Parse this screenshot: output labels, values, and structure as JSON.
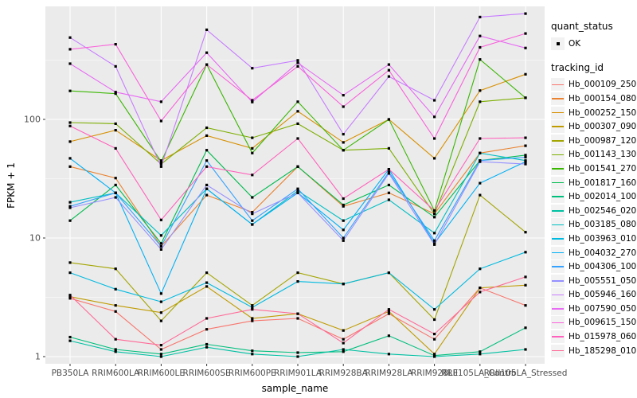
{
  "figure": {
    "background": "#ffffff",
    "panel_background": "#ebebeb",
    "grid_color": "#ffffff",
    "axis_text_color": "#4d4d4d",
    "axis_title_color": "#000000",
    "marker_color": "#000000",
    "legend_key_background": "#f2f2f2"
  },
  "legend": {
    "quant_title": "quant_status",
    "quant_items": [
      {
        "label": "OK",
        "marker": "point"
      }
    ],
    "tracking_title": "tracking_id"
  },
  "chart_data": {
    "type": "line",
    "title": "",
    "xlabel": "sample_name",
    "ylabel": "FPKM + 1",
    "y_scale": "log10",
    "y_ticks": [
      1,
      10,
      100
    ],
    "y_tick_labels": [
      "1",
      "10",
      "100"
    ],
    "y_minor_ticks": [
      3.162,
      31.62,
      316.2
    ],
    "ylim": [
      0.93,
      870
    ],
    "grid": true,
    "legend_position": "right",
    "marker": "black-square",
    "categories": [
      "PB350LA",
      "RRIM600LA",
      "RRIM600LE",
      "RRIM600SE",
      "RRIM600PE",
      "RRIM901LA",
      "RRIM928BA",
      "RRIM928LA",
      "RRIM928LE",
      "RRII105LA_Control",
      "RRII105LA_Stressed"
    ],
    "series": [
      {
        "name": "Hb_000109_250",
        "color": "#F8766D",
        "values": [
          3.1,
          2.4,
          1.15,
          1.7,
          2.0,
          2.1,
          1.4,
          2.3,
          1.4,
          3.8,
          2.7
        ]
      },
      {
        "name": "Hb_000154_080",
        "color": "#EA8331",
        "values": [
          40,
          32,
          8.5,
          23,
          16.5,
          40,
          18.5,
          24,
          16,
          52,
          60
        ]
      },
      {
        "name": "Hb_000252_150",
        "color": "#D89000",
        "values": [
          65,
          81,
          45,
          73,
          57,
          117,
          64,
          100,
          47,
          175,
          240
        ]
      },
      {
        "name": "Hb_000307_090",
        "color": "#C09B00",
        "values": [
          3.2,
          2.7,
          2.35,
          3.9,
          2.1,
          2.3,
          1.66,
          2.4,
          1.05,
          3.8,
          4.0
        ]
      },
      {
        "name": "Hb_000987_120",
        "color": "#A3A500",
        "values": [
          6.2,
          5.5,
          2.0,
          5.1,
          2.7,
          5.1,
          4.1,
          5.1,
          2.05,
          23,
          11.2
        ]
      },
      {
        "name": "Hb_001143_130",
        "color": "#7CAE00",
        "values": [
          94,
          92,
          42,
          85,
          70,
          92,
          55,
          57,
          16,
          141,
          152
        ]
      },
      {
        "name": "Hb_001541_270",
        "color": "#39B600",
        "values": [
          174,
          165,
          44,
          290,
          52,
          141,
          55,
          100,
          17,
          320,
          152
        ]
      },
      {
        "name": "Hb_001817_160",
        "color": "#00BB4E",
        "values": [
          14,
          28,
          9,
          55,
          22,
          40,
          19,
          28,
          15,
          45,
          50
        ]
      },
      {
        "name": "Hb_002014_100",
        "color": "#00BF7D",
        "values": [
          1.46,
          1.15,
          1.05,
          1.27,
          1.12,
          1.08,
          1.1,
          1.5,
          1.02,
          1.1,
          1.75
        ]
      },
      {
        "name": "Hb_002546_020",
        "color": "#00C1A3",
        "values": [
          1.36,
          1.1,
          1.0,
          1.2,
          1.05,
          1.0,
          1.15,
          1.05,
          1.0,
          1.05,
          1.15
        ]
      },
      {
        "name": "Hb_003185_080",
        "color": "#00BFC4",
        "values": [
          20,
          24,
          10.5,
          26,
          13,
          25,
          14,
          21,
          11,
          52,
          45
        ]
      },
      {
        "name": "Hb_003963_010",
        "color": "#00BAE0",
        "values": [
          5.1,
          3.7,
          2.9,
          4.2,
          2.6,
          4.3,
          4.1,
          5.1,
          2.5,
          5.5,
          7.6
        ]
      },
      {
        "name": "Hb_004032_270",
        "color": "#00B0F6",
        "values": [
          47,
          24,
          3.4,
          26,
          13,
          24,
          11.7,
          38,
          9,
          29,
          44
        ]
      },
      {
        "name": "Hb_004306_100",
        "color": "#35A2FF",
        "values": [
          18.5,
          24,
          8.5,
          45,
          14,
          26,
          10,
          36,
          9.5,
          45,
          48
        ]
      },
      {
        "name": "Hb_005551_050",
        "color": "#9590FF",
        "values": [
          18,
          22,
          8,
          28,
          16,
          24,
          9.5,
          35,
          8.8,
          44,
          42
        ]
      },
      {
        "name": "Hb_005946_160",
        "color": "#C77CFF",
        "values": [
          490,
          280,
          40,
          570,
          270,
          315,
          75,
          230,
          145,
          730,
          780
        ]
      },
      {
        "name": "Hb_007590_050",
        "color": "#E76BF3",
        "values": [
          295,
          170,
          141,
          365,
          140,
          300,
          160,
          290,
          105,
          505,
          400
        ]
      },
      {
        "name": "Hb_009615_150",
        "color": "#FA62DB",
        "values": [
          390,
          430,
          97,
          290,
          145,
          280,
          128,
          260,
          69,
          405,
          530
        ]
      },
      {
        "name": "Hb_015978_060",
        "color": "#FF62BC",
        "values": [
          88,
          57,
          14.2,
          40,
          34,
          69,
          21.5,
          38,
          17,
          69,
          70
        ]
      },
      {
        "name": "Hb_185298_010",
        "color": "#FF6A98",
        "values": [
          3.3,
          1.4,
          1.25,
          2.1,
          2.5,
          2.3,
          1.3,
          2.5,
          1.55,
          3.5,
          4.7
        ]
      }
    ]
  }
}
